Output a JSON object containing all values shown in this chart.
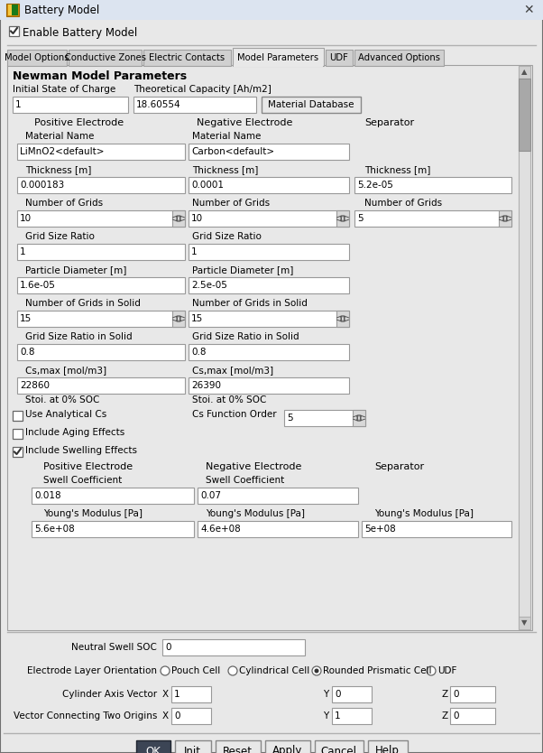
{
  "title": "Battery Model",
  "bg_color": "#f0f0f0",
  "white": "#ffffff",
  "ok_btn_bg": "#3c4555",
  "ok_btn_fg": "#ffffff",
  "tabs": [
    "Model Options",
    "Conductive Zones",
    "Electric Contacts",
    "Model Parameters",
    "UDF",
    "Advanced Options"
  ],
  "active_tab": 3,
  "section_title": "Newman Model Parameters",
  "bottom_buttons": [
    "OK",
    "Init",
    "Reset",
    "Apply",
    "Cancel",
    "Help"
  ]
}
